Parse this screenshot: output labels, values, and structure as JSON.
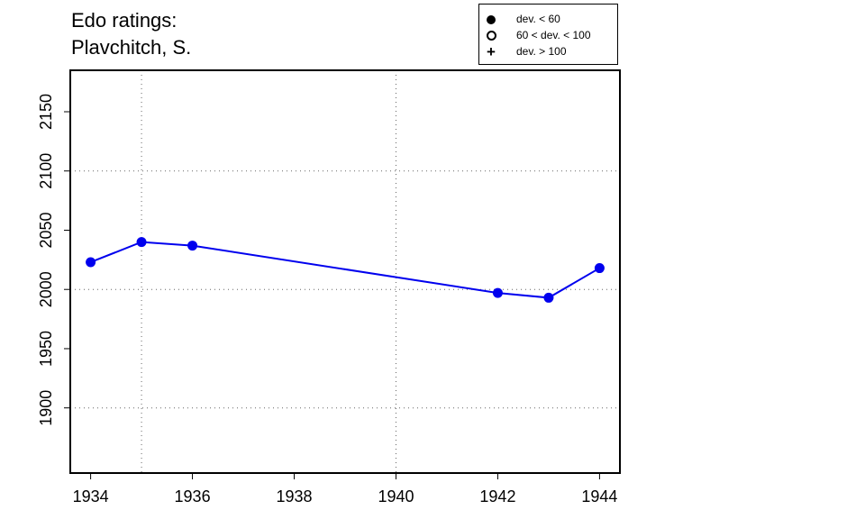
{
  "chart_data": {
    "type": "line",
    "title_lines": [
      "Edo ratings:",
      "Plavchitch, S."
    ],
    "xlabel": "",
    "ylabel": "",
    "xlim": [
      1933.6,
      1944.4
    ],
    "ylim": [
      1845,
      2185
    ],
    "x_ticks": [
      1934,
      1936,
      1938,
      1940,
      1942,
      1944
    ],
    "y_ticks": [
      1900,
      1950,
      2000,
      2050,
      2100,
      2150
    ],
    "grid_x": [
      1935,
      1940
    ],
    "grid_y": [
      1900,
      2000,
      2100
    ],
    "series": [
      {
        "color": "#0000ee",
        "marker": "filled-circle",
        "x": [
          1934,
          1935,
          1936,
          1942,
          1943,
          1944
        ],
        "y": [
          2023,
          2040,
          2037,
          1997,
          1993,
          2018
        ]
      }
    ],
    "legend": {
      "position": "top-right",
      "entries": [
        {
          "symbol": "filled-circle",
          "label": "dev. < 60"
        },
        {
          "symbol": "open-circle",
          "label": "60 < dev. < 100"
        },
        {
          "symbol": "plus",
          "label": "dev. > 100"
        }
      ]
    }
  }
}
